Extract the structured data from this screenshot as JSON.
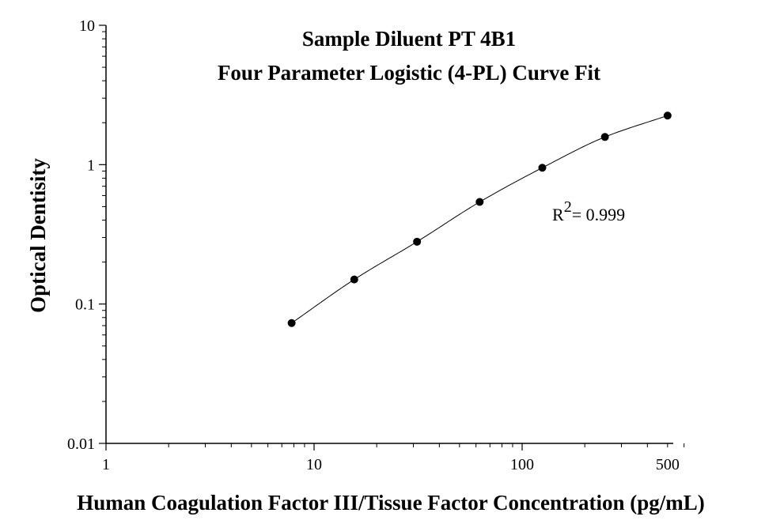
{
  "chart_data": {
    "type": "scatter",
    "title": "Sample Diluent PT 4B1",
    "subtitle": "Four Parameter Logistic (4-PL) Curve Fit",
    "xlabel": "Human Coagulation Factor III/Tissue Factor Concentration (pg/mL)",
    "ylabel": "Optical Dentisity",
    "x_scale": "log",
    "y_scale": "log",
    "xlim": [
      1,
      600
    ],
    "ylim": [
      0.01,
      10
    ],
    "x_ticks": [
      {
        "value": 1,
        "label": "1"
      },
      {
        "value": 10,
        "label": "10"
      },
      {
        "value": 100,
        "label": "100"
      },
      {
        "value": 500,
        "label": "500"
      }
    ],
    "y_ticks": [
      {
        "value": 0.01,
        "label": "0.01"
      },
      {
        "value": 0.1,
        "label": "0.1"
      },
      {
        "value": 1,
        "label": "1"
      },
      {
        "value": 10,
        "label": "10"
      }
    ],
    "grid": false,
    "series": [
      {
        "x": [
          7.8,
          15.6,
          31.25,
          62.5,
          125,
          250,
          500
        ],
        "y": [
          0.073,
          0.15,
          0.28,
          0.54,
          0.95,
          1.58,
          2.25
        ]
      }
    ],
    "fit_curve": {
      "model": "4-PL",
      "x_range": [
        7.8,
        500
      ]
    },
    "annotation": {
      "base": "R",
      "superscript": "2",
      "value": "= 0.999"
    }
  }
}
